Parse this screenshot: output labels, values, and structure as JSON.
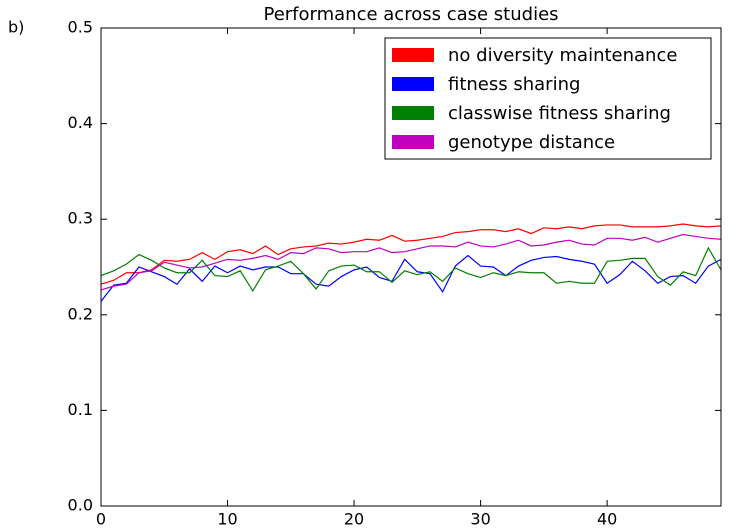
{
  "panel_label": "b)",
  "chart_data": {
    "type": "line",
    "title": "Performance across case studies",
    "x": [
      0,
      1,
      2,
      3,
      4,
      5,
      6,
      7,
      8,
      9,
      10,
      11,
      12,
      13,
      14,
      15,
      16,
      17,
      18,
      19,
      20,
      21,
      22,
      23,
      24,
      25,
      26,
      27,
      28,
      29,
      30,
      31,
      32,
      33,
      34,
      35,
      36,
      37,
      38,
      39,
      40,
      41,
      42,
      43,
      44,
      45,
      46,
      47,
      48,
      49
    ],
    "xlim": [
      0,
      49
    ],
    "xticks": [
      0,
      10,
      20,
      30,
      40
    ],
    "ylim": [
      0,
      0.5
    ],
    "yticks": [
      {
        "value": 0,
        "label": "0.0"
      },
      {
        "value": 0.1,
        "label": "0.1"
      },
      {
        "value": 0.2,
        "label": "0.2"
      },
      {
        "value": 0.3,
        "label": "0.3"
      },
      {
        "value": 0.4,
        "label": "0.4"
      },
      {
        "value": 0.5,
        "label": "0.5"
      }
    ],
    "legend": "upper right",
    "grid": false,
    "series": [
      {
        "name": "no diversity maintenance",
        "color": "#ff0000",
        "values": [
          0.232,
          0.236,
          0.244,
          0.244,
          0.247,
          0.257,
          0.256,
          0.258,
          0.265,
          0.258,
          0.266,
          0.268,
          0.264,
          0.272,
          0.263,
          0.269,
          0.271,
          0.272,
          0.275,
          0.274,
          0.276,
          0.279,
          0.278,
          0.283,
          0.277,
          0.278,
          0.28,
          0.282,
          0.286,
          0.287,
          0.289,
          0.289,
          0.287,
          0.29,
          0.285,
          0.291,
          0.29,
          0.292,
          0.29,
          0.293,
          0.294,
          0.294,
          0.292,
          0.292,
          0.292,
          0.293,
          0.295,
          0.293,
          0.292,
          0.293
        ]
      },
      {
        "name": "fitness sharing",
        "color": "#0000ff",
        "values": [
          0.214,
          0.231,
          0.233,
          0.25,
          0.245,
          0.24,
          0.232,
          0.248,
          0.235,
          0.251,
          0.244,
          0.251,
          0.247,
          0.25,
          0.25,
          0.243,
          0.243,
          0.232,
          0.23,
          0.24,
          0.247,
          0.25,
          0.239,
          0.235,
          0.258,
          0.245,
          0.243,
          0.224,
          0.251,
          0.262,
          0.251,
          0.25,
          0.241,
          0.251,
          0.257,
          0.26,
          0.261,
          0.258,
          0.256,
          0.253,
          0.233,
          0.242,
          0.256,
          0.246,
          0.233,
          0.24,
          0.241,
          0.233,
          0.251,
          0.258
        ]
      },
      {
        "name": "classwise fitness sharing",
        "color": "#008000",
        "values": [
          0.241,
          0.246,
          0.253,
          0.263,
          0.257,
          0.249,
          0.244,
          0.244,
          0.257,
          0.241,
          0.24,
          0.246,
          0.225,
          0.247,
          0.251,
          0.256,
          0.243,
          0.227,
          0.246,
          0.251,
          0.252,
          0.245,
          0.245,
          0.234,
          0.246,
          0.242,
          0.245,
          0.235,
          0.249,
          0.243,
          0.239,
          0.244,
          0.241,
          0.245,
          0.244,
          0.244,
          0.233,
          0.235,
          0.233,
          0.233,
          0.256,
          0.257,
          0.259,
          0.259,
          0.24,
          0.231,
          0.245,
          0.241,
          0.27,
          0.247
        ]
      },
      {
        "name": "genotype distance",
        "color": "#bf00bf",
        "values": [
          0.226,
          0.23,
          0.232,
          0.244,
          0.246,
          0.255,
          0.252,
          0.249,
          0.25,
          0.254,
          0.258,
          0.257,
          0.259,
          0.262,
          0.258,
          0.265,
          0.264,
          0.27,
          0.269,
          0.265,
          0.266,
          0.266,
          0.27,
          0.265,
          0.266,
          0.269,
          0.272,
          0.272,
          0.271,
          0.276,
          0.272,
          0.271,
          0.274,
          0.278,
          0.272,
          0.273,
          0.276,
          0.278,
          0.274,
          0.273,
          0.28,
          0.28,
          0.278,
          0.281,
          0.276,
          0.28,
          0.284,
          0.282,
          0.28,
          0.279
        ]
      }
    ]
  }
}
